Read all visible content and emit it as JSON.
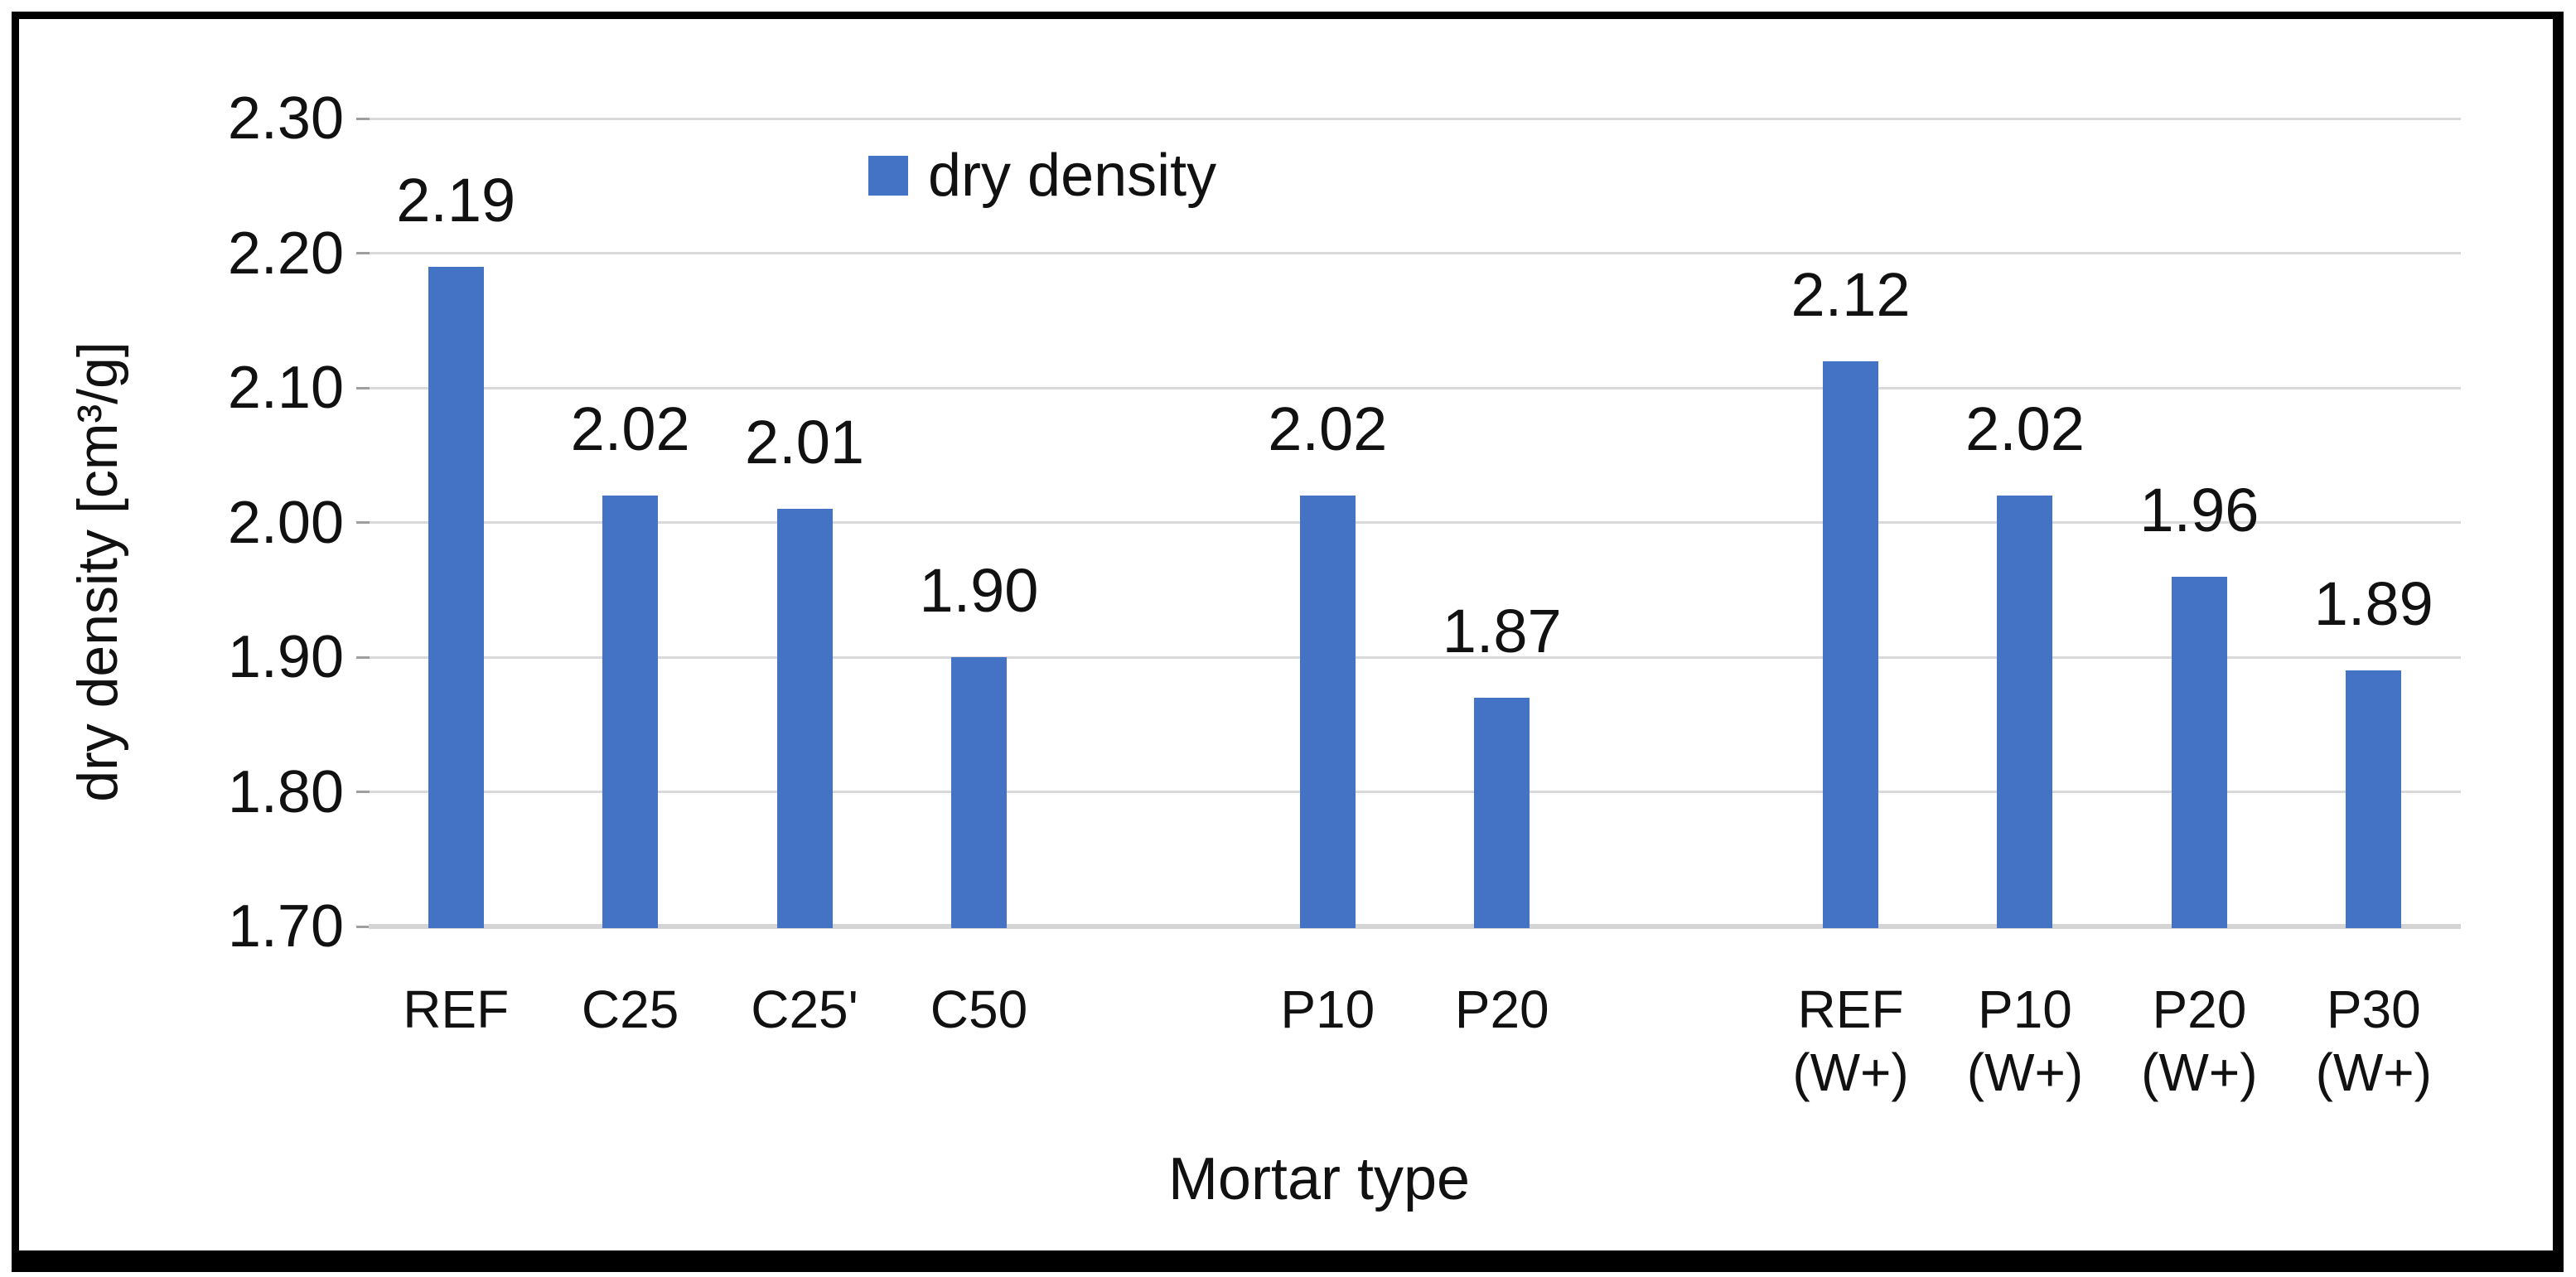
{
  "chart_data": {
    "type": "bar",
    "title": "",
    "xlabel": "Mortar type",
    "ylabel": "dry density [cm³/g]",
    "ylim": [
      1.7,
      2.3
    ],
    "ytick_step": 0.1,
    "grid": true,
    "legend_position": "top-center",
    "total_slots": 12,
    "categories": [
      {
        "line1": "REF",
        "line2": "",
        "slot": 0
      },
      {
        "line1": "C25",
        "line2": "",
        "slot": 1
      },
      {
        "line1": "C25'",
        "line2": "",
        "slot": 2
      },
      {
        "line1": "C50",
        "line2": "",
        "slot": 3
      },
      {
        "line1": "P10",
        "line2": "",
        "slot": 5
      },
      {
        "line1": "P20",
        "line2": "",
        "slot": 6
      },
      {
        "line1": "REF",
        "line2": "(W+)",
        "slot": 8
      },
      {
        "line1": "P10",
        "line2": "(W+)",
        "slot": 9
      },
      {
        "line1": "P20",
        "line2": "(W+)",
        "slot": 10
      },
      {
        "line1": "P30",
        "line2": "(W+)",
        "slot": 11
      }
    ],
    "series": [
      {
        "name": "dry density",
        "color": "#4472C4",
        "values": [
          2.19,
          2.02,
          2.01,
          1.9,
          2.02,
          1.87,
          2.12,
          2.02,
          1.96,
          1.89
        ]
      }
    ],
    "values_display": [
      "2.19",
      "2.02",
      "2.01",
      "1.90",
      "2.02",
      "1.87",
      "2.12",
      "2.02",
      "1.96",
      "1.89"
    ],
    "yticks": [
      {
        "label": "2.30",
        "value": 2.3
      },
      {
        "label": "2.20",
        "value": 2.2
      },
      {
        "label": "2.10",
        "value": 2.1
      },
      {
        "label": "2.00",
        "value": 2.0
      },
      {
        "label": "1.90",
        "value": 1.9
      },
      {
        "label": "1.80",
        "value": 1.8
      },
      {
        "label": "1.70",
        "value": 1.7
      }
    ],
    "gridline_color": "#D9D9D9",
    "axis_line_color": "#D4D4D4"
  },
  "legend": {
    "label": "dry density",
    "swatch_color": "#4472C4"
  },
  "axes": {
    "x_title": "Mortar type",
    "y_title": "dry density [cm³/g]"
  }
}
